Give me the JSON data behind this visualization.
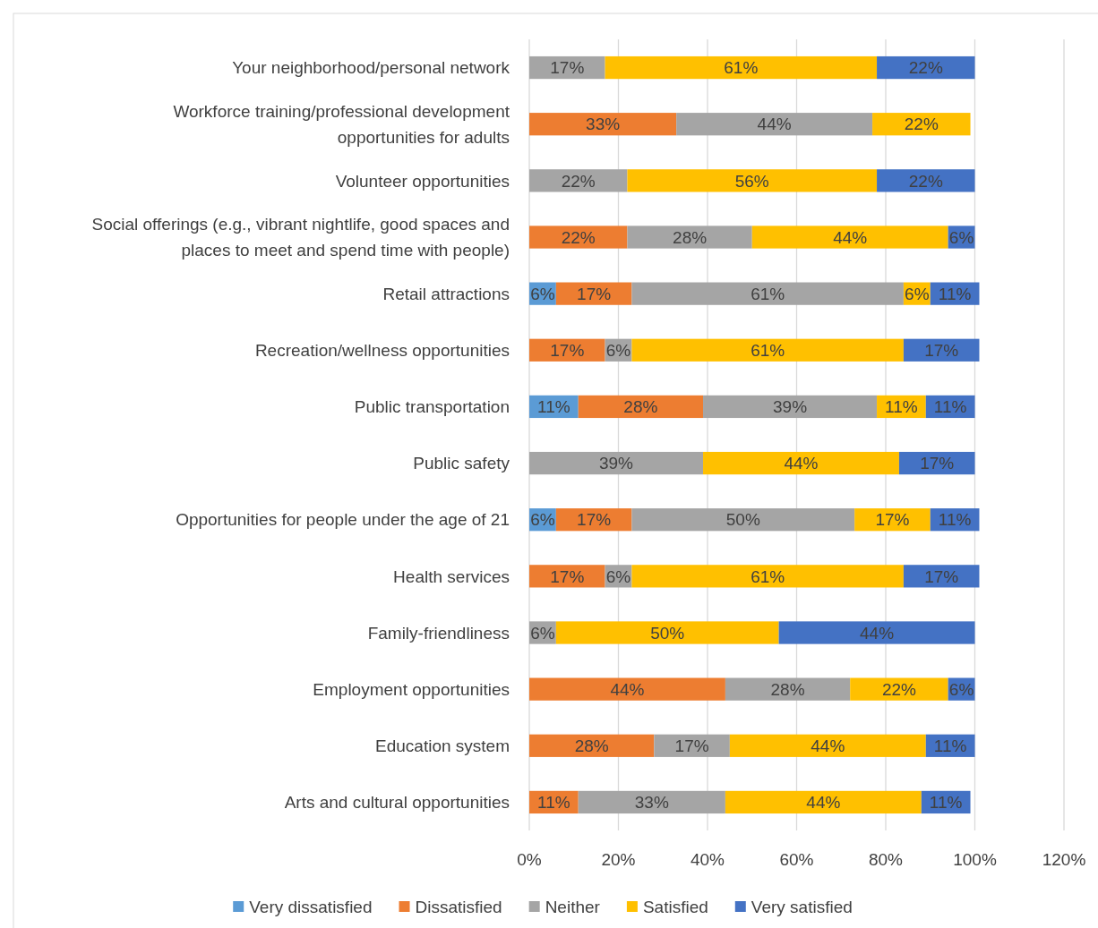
{
  "chart_data": {
    "type": "bar",
    "orientation": "horizontal",
    "stacked": true,
    "categories": [
      "Your neighborhood/personal network",
      "Workforce training/professional development opportunities for adults",
      "Volunteer opportunities",
      "Social offerings (e.g., vibrant nightlife, good spaces and places to meet and spend time with people)",
      "Retail attractions",
      "Recreation/wellness opportunities",
      "Public transportation",
      "Public safety",
      "Opportunities for people under the age of 21",
      "Health services",
      "Family-friendliness",
      "Employment opportunities",
      "Education system",
      "Arts and cultural opportunities"
    ],
    "series": [
      {
        "name": "Very dissatisfied",
        "color": "#5b9bd5",
        "values": [
          null,
          null,
          null,
          null,
          6,
          null,
          11,
          null,
          6,
          null,
          null,
          null,
          null,
          null
        ],
        "value_labels": [
          null,
          null,
          null,
          null,
          "6%",
          null,
          "11%",
          null,
          "6%",
          null,
          null,
          null,
          null,
          null
        ]
      },
      {
        "name": "Dissatisfied",
        "color": "#ed7d31",
        "values": [
          null,
          33,
          null,
          22,
          17,
          17,
          28,
          null,
          17,
          17,
          null,
          44,
          28,
          11
        ],
        "value_labels": [
          null,
          "33%",
          null,
          "22%",
          "17%",
          "17%",
          "28%",
          null,
          "17%",
          "17%",
          null,
          "44%",
          "28%",
          "11%"
        ]
      },
      {
        "name": "Neither",
        "color": "#a5a5a5",
        "values": [
          17,
          44,
          22,
          28,
          61,
          6,
          39,
          39,
          50,
          6,
          6,
          28,
          17,
          33
        ],
        "value_labels": [
          "17%",
          "44%",
          "22%",
          "28%",
          "61%",
          "6%",
          "39%",
          "39%",
          "50%",
          "6%",
          "6%",
          "28%",
          "17%",
          "33%"
        ]
      },
      {
        "name": "Satisfied",
        "color": "#ffc000",
        "values": [
          61,
          22,
          56,
          44,
          6,
          61,
          11,
          44,
          17,
          61,
          50,
          22,
          44,
          44
        ],
        "value_labels": [
          "61%",
          "22%",
          "56%",
          "44%",
          "6%",
          "61%",
          "11%",
          "44%",
          "17%",
          "61%",
          "50%",
          "22%",
          "44%",
          "44%"
        ]
      },
      {
        "name": "Very satisfied",
        "color": "#4472c4",
        "values": [
          22,
          null,
          22,
          6,
          11,
          17,
          11,
          17,
          11,
          17,
          44,
          6,
          11,
          11
        ],
        "value_labels": [
          "22%",
          null,
          "22%",
          "6%",
          "11%",
          "17%",
          "11%",
          "17%",
          "11%",
          "17%",
          "44%",
          "6%",
          "11%",
          "11%"
        ]
      }
    ],
    "xlim": [
      0,
      120
    ],
    "xticks": [
      {
        "value": 0,
        "label": "0%"
      },
      {
        "value": 20,
        "label": "20%"
      },
      {
        "value": 40,
        "label": "40%"
      },
      {
        "value": 60,
        "label": "60%"
      },
      {
        "value": 80,
        "label": "80%"
      },
      {
        "value": 100,
        "label": "100%"
      },
      {
        "value": 120,
        "label": "120%"
      }
    ],
    "grid": "x",
    "legend": "bottom"
  }
}
